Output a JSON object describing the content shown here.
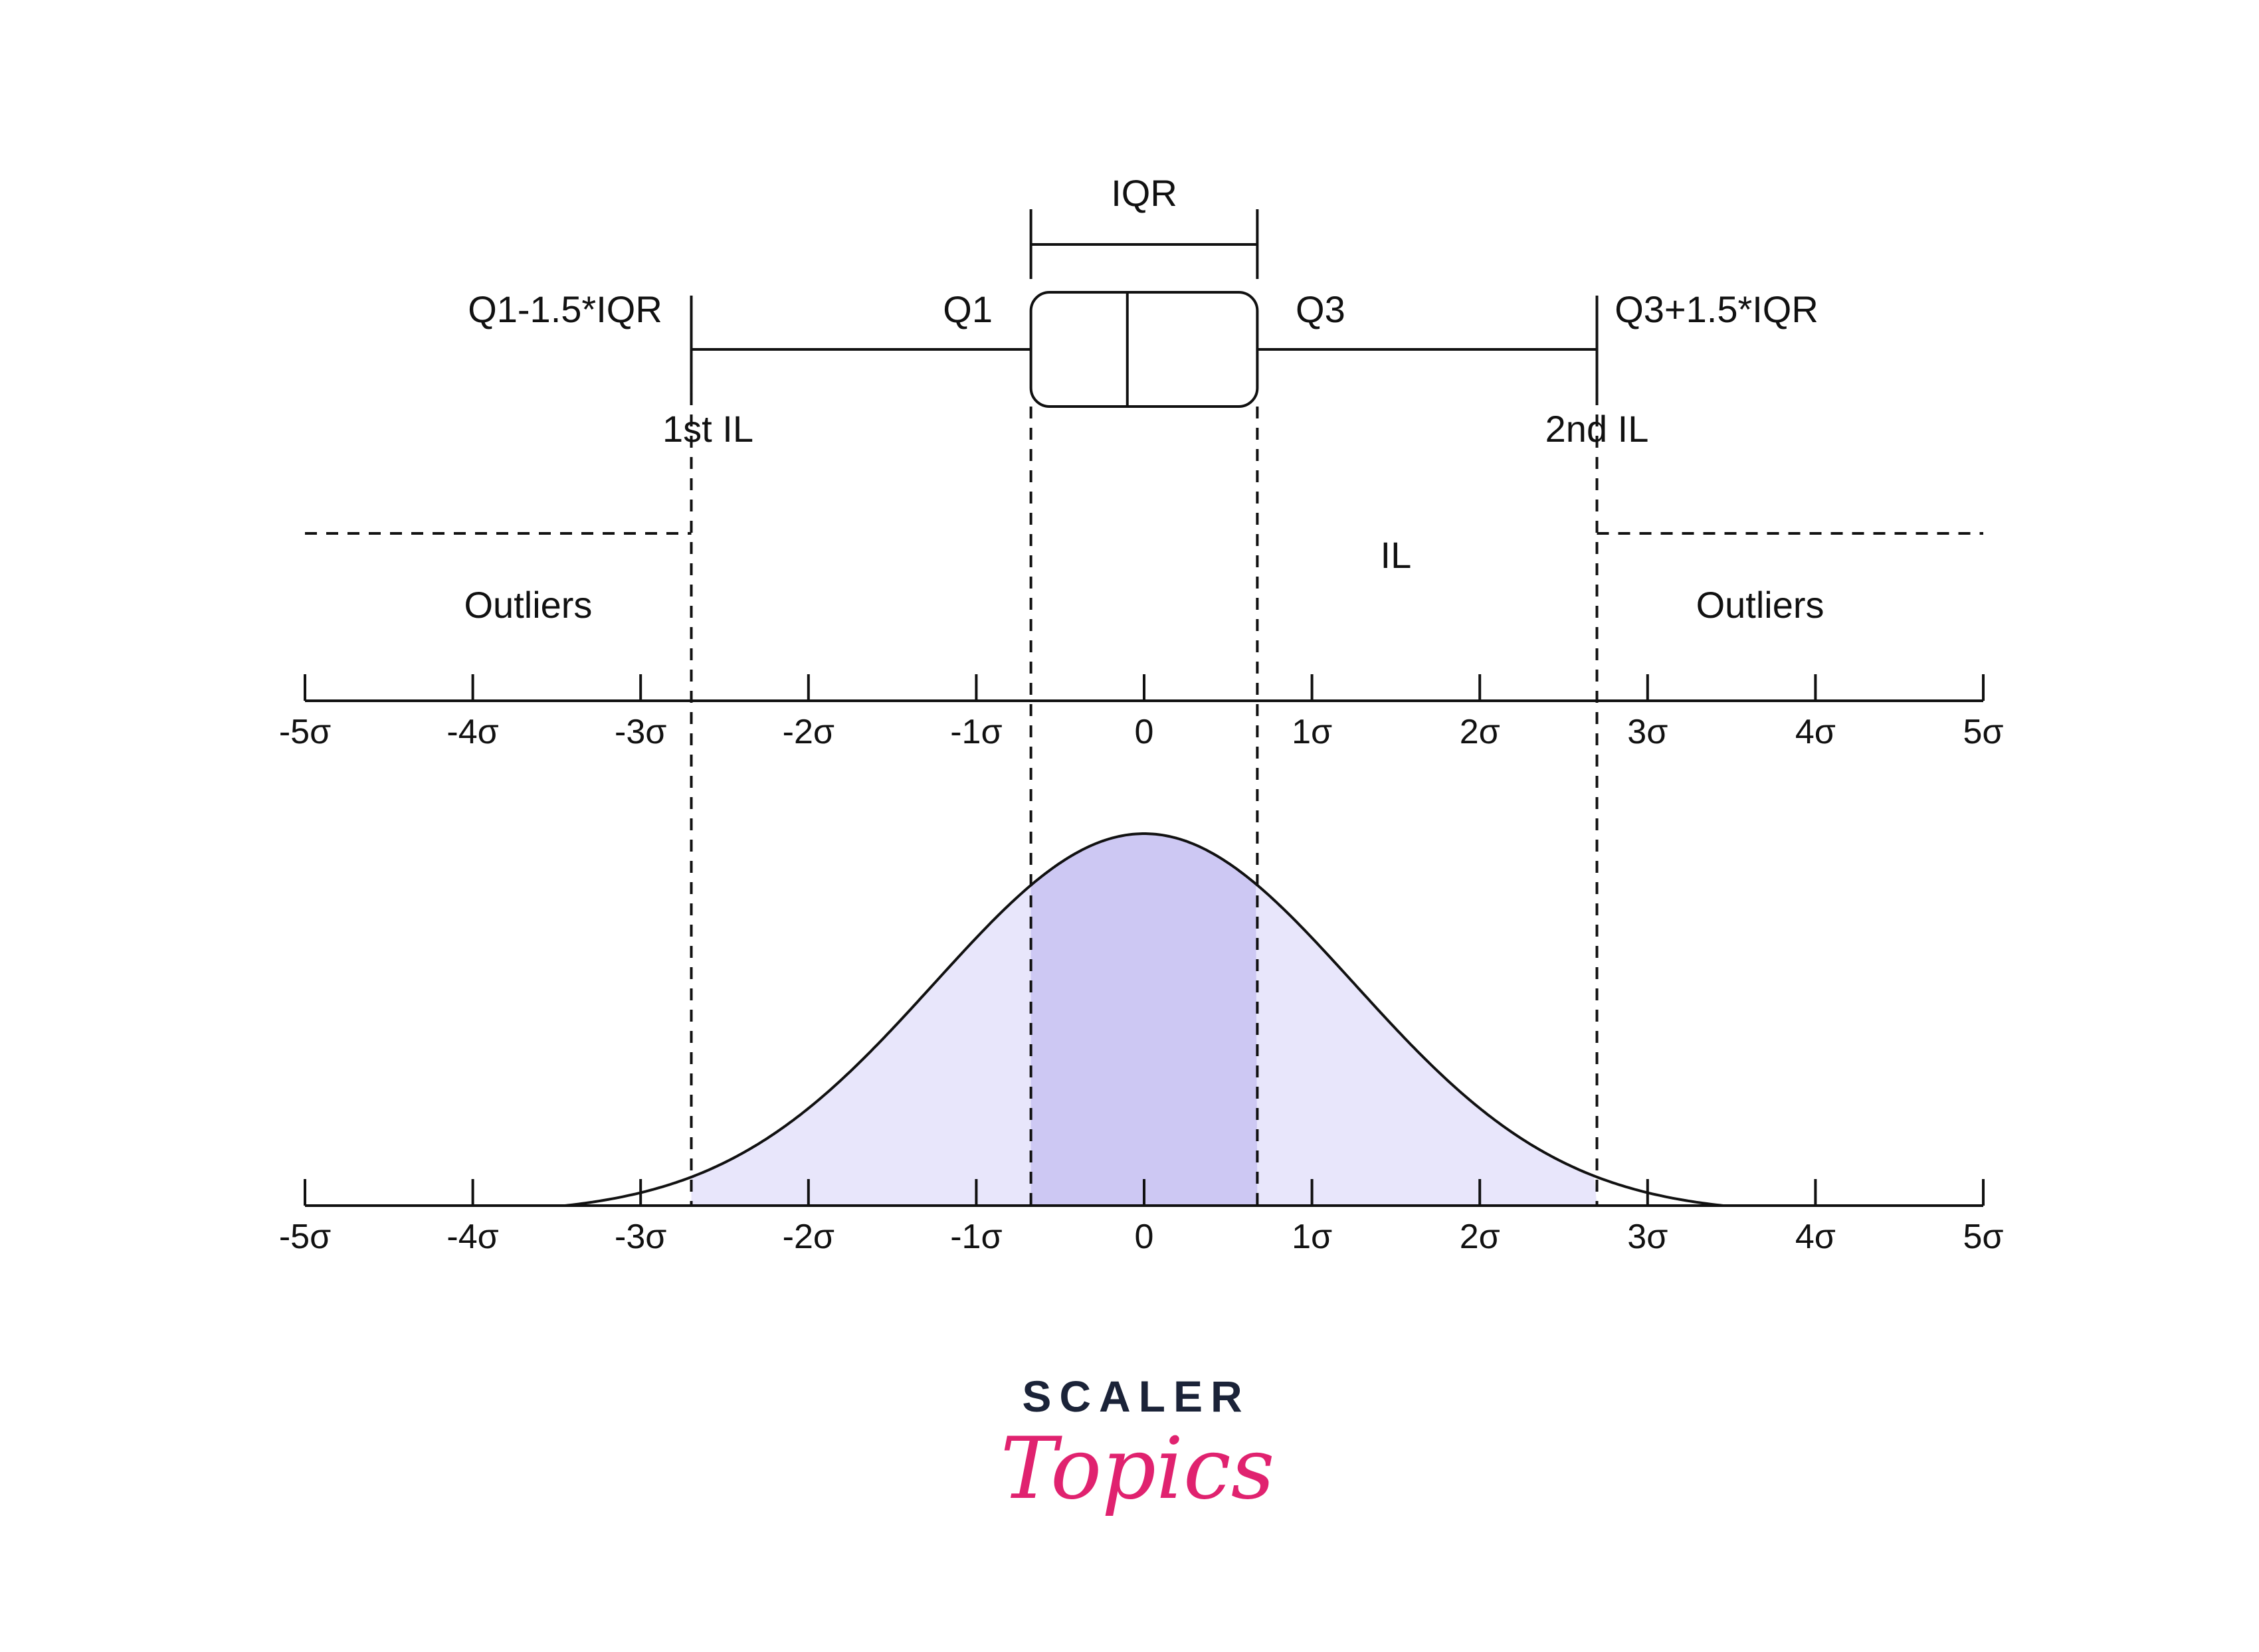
{
  "box_plot": {
    "iqr_label": "IQR",
    "q1_label": "Q1",
    "q3_label": "Q3",
    "lower_fence_label": "Q1-1.5*IQR",
    "upper_fence_label": "Q3+1.5*IQR",
    "first_il_label": "1st IL",
    "second_il_label": "2nd IL"
  },
  "regions": {
    "outliers_left": "Outliers",
    "il": "IL",
    "outliers_right": "Outliers"
  },
  "axis_ticks": [
    "-5σ",
    "-4σ",
    "-3σ",
    "-2σ",
    "-1σ",
    "0",
    "1σ",
    "2σ",
    "3σ",
    "4σ",
    "5σ"
  ],
  "markers_sigma": {
    "fence_low": -2.698,
    "q1": -0.6745,
    "q3": 0.6745,
    "fence_high": 2.698
  },
  "colors": {
    "line": "#111111",
    "fill_light": "#e8e6fb",
    "fill_iqr": "#cdc8f3",
    "brand_dark": "#1b2338",
    "brand_pink": "#e0226f"
  },
  "brand": {
    "top": "SCALER",
    "bottom": "Topics"
  }
}
